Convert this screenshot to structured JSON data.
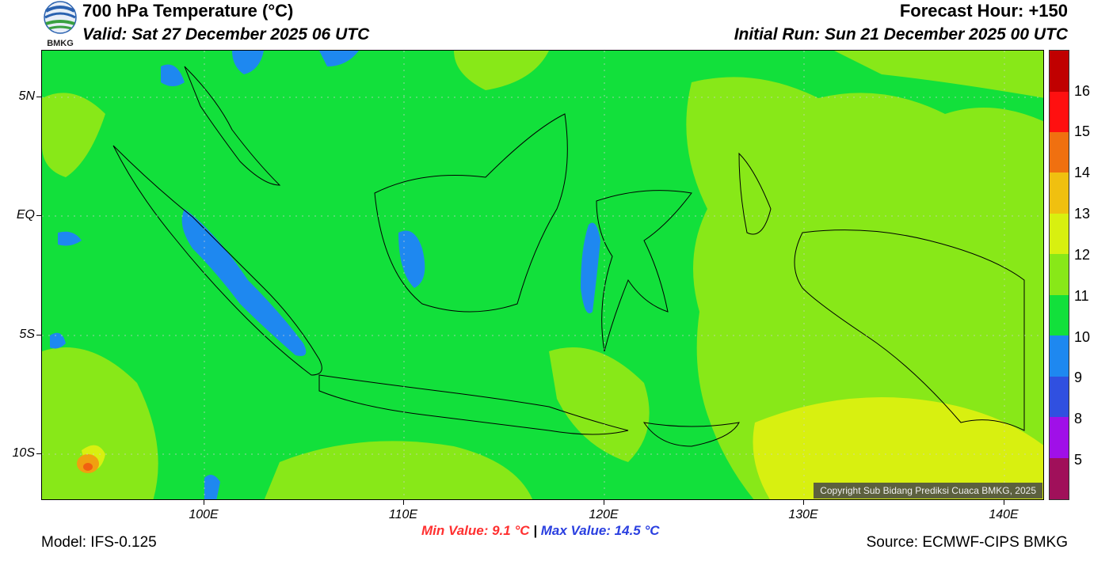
{
  "header": {
    "logo_text": "BMKG",
    "title": "700 hPa Temperature (°C)",
    "valid": "Valid: Sat 27 December 2025 06 UTC",
    "forecast_hour": "Forecast Hour: +150",
    "initial_run": "Initial Run: Sun 21 December 2025 00 UTC"
  },
  "axes": {
    "lat_labels": [
      "5N",
      "EQ",
      "5S",
      "10S"
    ],
    "lon_labels": [
      "100E",
      "110E",
      "120E",
      "130E",
      "140E"
    ]
  },
  "colorbar": {
    "labels": [
      "16",
      "15",
      "14",
      "13",
      "12",
      "11",
      "10",
      "9",
      "8",
      "5"
    ],
    "colors": [
      "#c00000",
      "#ff1010",
      "#f07010",
      "#f0c010",
      "#d8f010",
      "#88e818",
      "#12e03b",
      "#1e88f0",
      "#3050e0",
      "#a010e8",
      "#a0105a"
    ]
  },
  "stats": {
    "min_label": "Min Value: 9.1 °C",
    "separator": "|",
    "max_label": "Max Value: 14.5 °C"
  },
  "footer": {
    "model": "Model: IFS-0.125",
    "source": "Source: ECMWF-CIPS BMKG",
    "copyright": "Copyright Sub Bidang Prediksi Cuaca BMKG, 2025"
  }
}
